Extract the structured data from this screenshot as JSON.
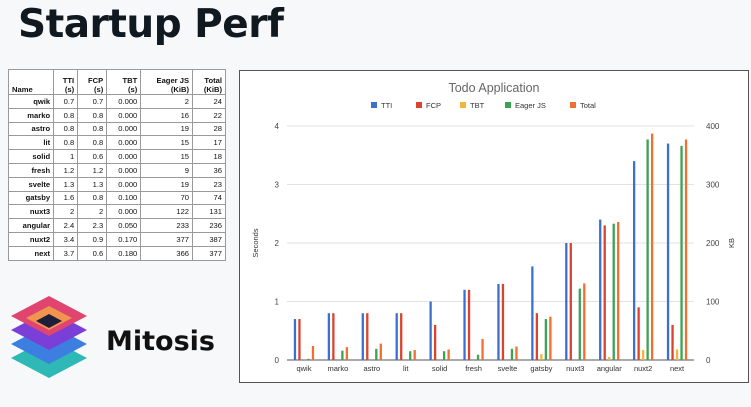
{
  "slide": {
    "title": "Startup Perf",
    "brand": "Mitosis"
  },
  "table": {
    "headers": [
      [
        "Name"
      ],
      [
        "TTI",
        "(s)"
      ],
      [
        "FCP",
        "(s)"
      ],
      [
        "TBT",
        "(s)"
      ],
      [
        "Eager JS",
        "(KiB)"
      ],
      [
        "Total",
        "(KiB)"
      ]
    ],
    "rows": [
      [
        "qwik",
        "0.7",
        "0.7",
        "0.000",
        "2",
        "24"
      ],
      [
        "marko",
        "0.8",
        "0.8",
        "0.000",
        "16",
        "22"
      ],
      [
        "astro",
        "0.8",
        "0.8",
        "0.000",
        "19",
        "28"
      ],
      [
        "lit",
        "0.8",
        "0.8",
        "0.000",
        "15",
        "17"
      ],
      [
        "solid",
        "1",
        "0.6",
        "0.000",
        "15",
        "18"
      ],
      [
        "fresh",
        "1.2",
        "1.2",
        "0.000",
        "9",
        "36"
      ],
      [
        "svelte",
        "1.3",
        "1.3",
        "0.000",
        "19",
        "23"
      ],
      [
        "gatsby",
        "1.6",
        "0.8",
        "0.100",
        "70",
        "74"
      ],
      [
        "nuxt3",
        "2",
        "2",
        "0.000",
        "122",
        "131"
      ],
      [
        "angular",
        "2.4",
        "2.3",
        "0.050",
        "233",
        "236"
      ],
      [
        "nuxt2",
        "3.4",
        "0.9",
        "0.170",
        "377",
        "387"
      ],
      [
        "next",
        "3.7",
        "0.6",
        "0.180",
        "366",
        "377"
      ]
    ]
  },
  "chart_data": {
    "type": "bar",
    "title": "Todo Application",
    "ylabel": "Seconds",
    "y2label": "KB",
    "ylim": [
      0,
      4
    ],
    "y2lim": [
      0,
      400
    ],
    "yticks": [
      "0",
      "1",
      "2",
      "3",
      "4"
    ],
    "y2ticks": [
      "0",
      "100",
      "200",
      "300",
      "400"
    ],
    "legend_position": "top",
    "grid": true,
    "categories": [
      "qwik",
      "marko",
      "astro",
      "lit",
      "solid",
      "fresh",
      "svelte",
      "gatsby",
      "nuxt3",
      "angular",
      "nuxt2",
      "next"
    ],
    "series": [
      {
        "name": "TTI",
        "axis": "left",
        "color": "#3d6fd1",
        "values": [
          0.7,
          0.8,
          0.8,
          0.8,
          1,
          1.2,
          1.3,
          1.6,
          2,
          2.4,
          3.4,
          3.7
        ]
      },
      {
        "name": "FCP",
        "axis": "left",
        "color": "#d9432f",
        "values": [
          0.7,
          0.8,
          0.8,
          0.8,
          0.6,
          1.2,
          1.3,
          0.8,
          2,
          2.3,
          0.9,
          0.6
        ]
      },
      {
        "name": "TBT",
        "axis": "left",
        "color": "#f2b43a",
        "values": [
          0,
          0,
          0,
          0,
          0,
          0,
          0,
          0.1,
          0,
          0.05,
          0.17,
          0.18
        ]
      },
      {
        "name": "Eager JS",
        "axis": "right",
        "color": "#3aa354",
        "values": [
          2,
          16,
          19,
          15,
          15,
          9,
          19,
          70,
          122,
          233,
          377,
          366
        ]
      },
      {
        "name": "Total",
        "axis": "right",
        "color": "#f0712f",
        "values": [
          24,
          22,
          28,
          17,
          18,
          36,
          23,
          74,
          131,
          236,
          387,
          377
        ]
      }
    ]
  }
}
